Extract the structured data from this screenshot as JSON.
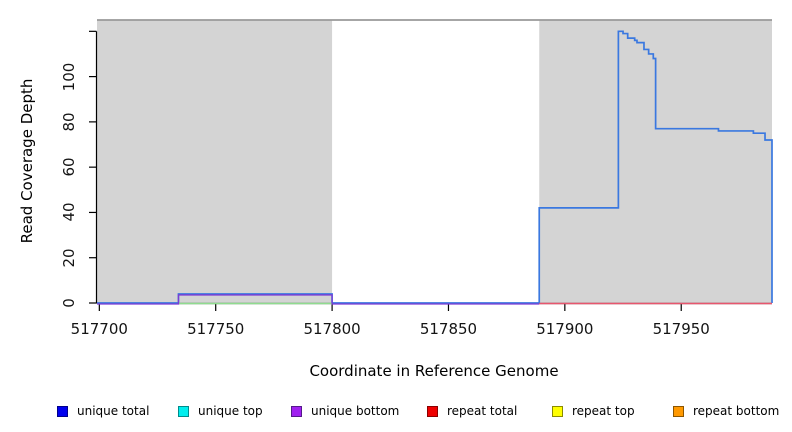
{
  "chart_data": {
    "type": "line",
    "title": "",
    "xlabel": "Coordinate in Reference Genome",
    "ylabel": "Read Coverage Depth",
    "xlim": [
      517699,
      517989
    ],
    "ylim": [
      0,
      125
    ],
    "grid": false,
    "legend_position": "bottom",
    "x_ticks": [
      {
        "v": 517700,
        "label": "517700"
      },
      {
        "v": 517750,
        "label": "517750"
      },
      {
        "v": 517800,
        "label": "517800"
      },
      {
        "v": 517850,
        "label": "517850"
      },
      {
        "v": 517900,
        "label": "517900"
      },
      {
        "v": 517950,
        "label": "517950"
      }
    ],
    "y_ticks": [
      {
        "v": 0,
        "label": "0"
      },
      {
        "v": 20,
        "label": "20"
      },
      {
        "v": 40,
        "label": "40"
      },
      {
        "v": 60,
        "label": "60"
      },
      {
        "v": 80,
        "label": "80"
      },
      {
        "v": 100,
        "label": "100"
      },
      {
        "v": 120,
        "label": ""
      }
    ],
    "highlight_regions": [
      {
        "start": 517699,
        "end": 517800
      },
      {
        "start": 517889,
        "end": 517989
      }
    ],
    "series": [
      {
        "name": "unique total",
        "color": "#3a78e0",
        "width": 1.7,
        "offset_y": 0,
        "points": [
          [
            517699,
            0
          ],
          [
            517734,
            4
          ],
          [
            517800,
            0
          ],
          [
            517889,
            42
          ],
          [
            517923,
            120
          ],
          [
            517925,
            119
          ],
          [
            517927,
            117
          ],
          [
            517930,
            116
          ],
          [
            517931,
            115
          ],
          [
            517934,
            112
          ],
          [
            517936,
            110
          ],
          [
            517938,
            108
          ],
          [
            517939,
            77
          ],
          [
            517966,
            76
          ],
          [
            517981,
            75
          ],
          [
            517986,
            72
          ],
          [
            517989,
            0
          ]
        ]
      },
      {
        "name": "unique top",
        "color": "#8fdc8f",
        "width": 1.4,
        "offset_y": 0.5,
        "points": [
          [
            517734,
            0
          ],
          [
            517800,
            0
          ]
        ]
      },
      {
        "name": "unique bottom",
        "color": "#7d3bd4",
        "width": 1.3,
        "offset_y": 1,
        "points": [
          [
            517699,
            0
          ],
          [
            517734,
            4
          ],
          [
            517800,
            0
          ],
          [
            517889,
            0
          ]
        ]
      },
      {
        "name": "repeat total",
        "color": "#e8566e",
        "width": 1.6,
        "offset_y": 0.5,
        "points": [
          [
            517889,
            0
          ],
          [
            517989,
            0
          ]
        ]
      }
    ]
  },
  "colors": {
    "region_fill": "#d4d4d4",
    "plot_background": "#ffffff",
    "top_border": "#9a9a9a",
    "axis": "#000000"
  },
  "legend": {
    "items": [
      {
        "label": "unique total",
        "fill": "#0000ee",
        "border": "#00008b"
      },
      {
        "label": "unique top",
        "fill": "#00eeee",
        "border": "#008b8b"
      },
      {
        "label": "unique bottom",
        "fill": "#a020f0",
        "border": "#551a8b"
      },
      {
        "label": "repeat total",
        "fill": "#ee0000",
        "border": "#8b0000"
      },
      {
        "label": "repeat top",
        "fill": "#ffff00",
        "border": "#8b8b00"
      },
      {
        "label": "repeat bottom",
        "fill": "#ff9900",
        "border": "#8b5500"
      }
    ]
  }
}
